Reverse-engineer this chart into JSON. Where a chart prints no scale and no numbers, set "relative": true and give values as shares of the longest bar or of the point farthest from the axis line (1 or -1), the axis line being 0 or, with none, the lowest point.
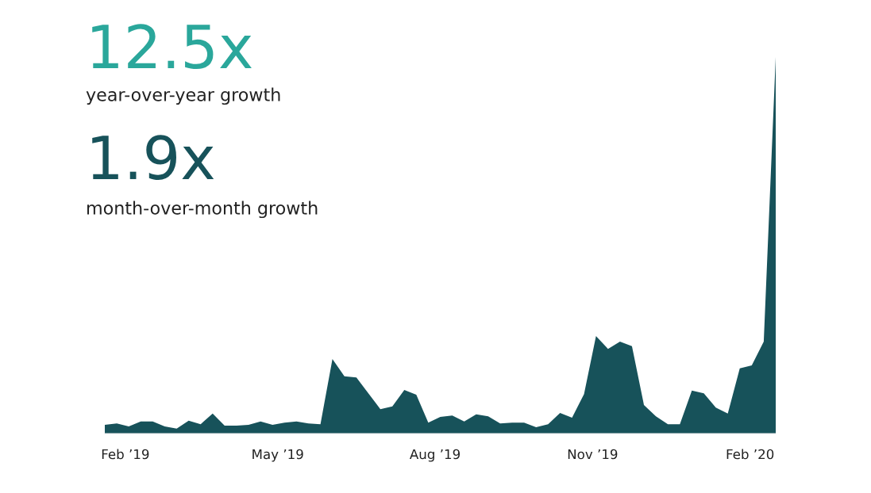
{
  "chart_data": {
    "type": "area",
    "relative": true,
    "x": [
      "2019-01-20",
      "2019-01-27",
      "2019-02-03",
      "2019-02-10",
      "2019-02-17",
      "2019-02-24",
      "2019-03-03",
      "2019-03-10",
      "2019-03-17",
      "2019-03-24",
      "2019-03-31",
      "2019-04-07",
      "2019-04-14",
      "2019-04-21",
      "2019-04-28",
      "2019-05-05",
      "2019-05-12",
      "2019-05-19",
      "2019-05-26",
      "2019-06-02",
      "2019-06-09",
      "2019-06-16",
      "2019-06-23",
      "2019-06-30",
      "2019-07-07",
      "2019-07-14",
      "2019-07-21",
      "2019-07-28",
      "2019-08-04",
      "2019-08-11",
      "2019-08-18",
      "2019-08-25",
      "2019-09-01",
      "2019-09-08",
      "2019-09-15",
      "2019-09-22",
      "2019-09-29",
      "2019-10-06",
      "2019-10-13",
      "2019-10-20",
      "2019-10-27",
      "2019-11-03",
      "2019-11-10",
      "2019-11-17",
      "2019-11-24",
      "2019-12-01",
      "2019-12-08",
      "2019-12-15",
      "2019-12-22",
      "2019-12-29",
      "2020-01-05",
      "2020-01-12",
      "2020-01-19",
      "2020-01-26",
      "2020-02-02",
      "2020-02-09",
      "2020-02-16"
    ],
    "series": [
      {
        "color": "#17525a",
        "values": [
          0.023,
          0.027,
          0.019,
          0.032,
          0.032,
          0.019,
          0.013,
          0.034,
          0.025,
          0.053,
          0.021,
          0.021,
          0.023,
          0.032,
          0.023,
          0.029,
          0.032,
          0.027,
          0.025,
          0.198,
          0.152,
          0.149,
          0.107,
          0.065,
          0.072,
          0.116,
          0.103,
          0.029,
          0.044,
          0.048,
          0.032,
          0.051,
          0.046,
          0.027,
          0.029,
          0.029,
          0.017,
          0.025,
          0.055,
          0.042,
          0.105,
          0.259,
          0.225,
          0.244,
          0.232,
          0.076,
          0.046,
          0.025,
          0.025,
          0.114,
          0.107,
          0.069,
          0.053,
          0.173,
          0.181,
          0.244,
          1.0
        ]
      }
    ],
    "xlim": [
      "2019-01-20",
      "2020-02-16"
    ],
    "xticks": [
      {
        "value": "2019-02-01",
        "label": "Feb ’19"
      },
      {
        "value": "2019-05-01",
        "label": "May ’19"
      },
      {
        "value": "2019-08-01",
        "label": "Aug ’19"
      },
      {
        "value": "2019-11-01",
        "label": "Nov ’19"
      },
      {
        "value": "2020-02-01",
        "label": "Feb ’20"
      }
    ],
    "annotations": [
      "12.5x",
      "year-over-year growth",
      "1.9x",
      "month-over-month growth"
    ]
  }
}
